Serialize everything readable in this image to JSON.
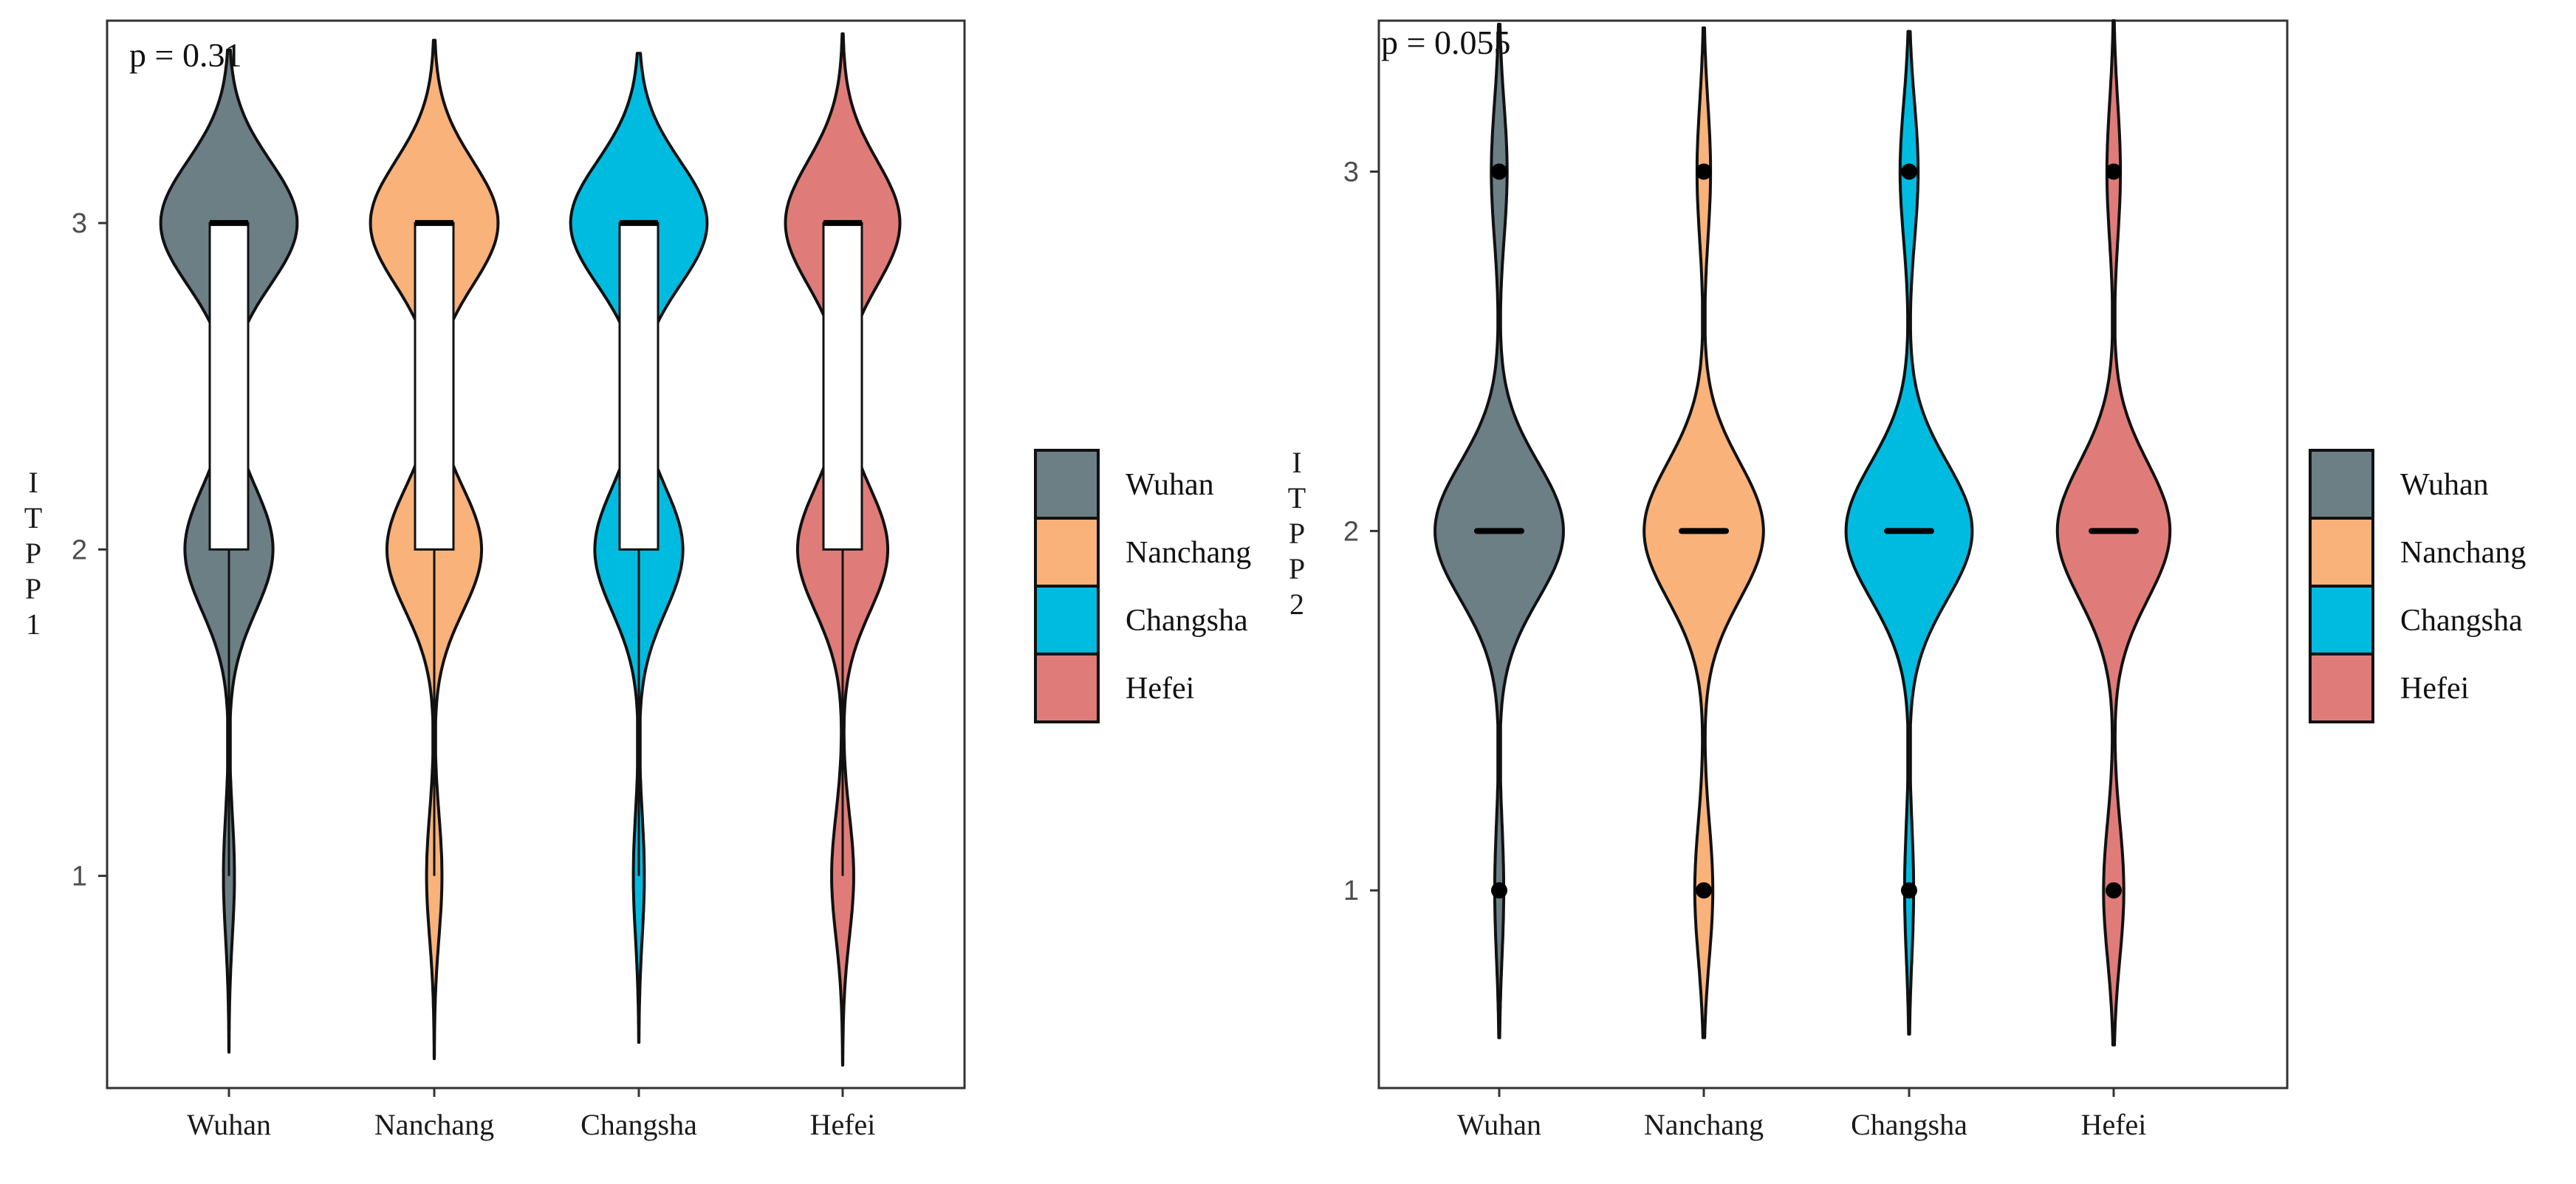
{
  "chart_data": [
    {
      "type": "violin",
      "id": "itpp1",
      "annotation": "p = 0.31",
      "ylabel": "ITPP1",
      "xlabel": "",
      "categories": [
        "Wuhan",
        "Nanchang",
        "Changsha",
        "Hefei"
      ],
      "y_ticks": [
        1,
        2,
        3
      ],
      "ylim": [
        0.35,
        3.62
      ],
      "overlay": "boxplot",
      "series": [
        {
          "name": "Wuhan",
          "color": "#6b7f85",
          "y_min": 0.46,
          "y_max": 3.53,
          "density_peaks": [
            {
              "y": 3,
              "w": 0.62
            },
            {
              "y": 2,
              "w": 0.4
            },
            {
              "y": 1,
              "w": 0.05
            }
          ],
          "box": {
            "q1": 2,
            "median": 3,
            "q3": 3,
            "whisker_low": 1,
            "whisker_high": 3
          }
        },
        {
          "name": "Nanchang",
          "color": "#f8b27a",
          "y_min": 0.44,
          "y_max": 3.56,
          "density_peaks": [
            {
              "y": 3,
              "w": 0.58
            },
            {
              "y": 2,
              "w": 0.43
            },
            {
              "y": 1,
              "w": 0.07
            }
          ],
          "box": {
            "q1": 2,
            "median": 3,
            "q3": 3,
            "whisker_low": 1,
            "whisker_high": 3
          }
        },
        {
          "name": "Changsha",
          "color": "#00bbe0",
          "y_min": 0.49,
          "y_max": 3.52,
          "density_peaks": [
            {
              "y": 3,
              "w": 0.62
            },
            {
              "y": 2,
              "w": 0.4
            },
            {
              "y": 1,
              "w": 0.05
            }
          ],
          "box": {
            "q1": 2,
            "median": 3,
            "q3": 3,
            "whisker_low": 1,
            "whisker_high": 3
          }
        },
        {
          "name": "Hefei",
          "color": "#df7c79",
          "y_min": 0.42,
          "y_max": 3.58,
          "density_peaks": [
            {
              "y": 3,
              "w": 0.52
            },
            {
              "y": 2,
              "w": 0.41
            },
            {
              "y": 1,
              "w": 0.1
            }
          ],
          "box": {
            "q1": 2,
            "median": 3,
            "q3": 3,
            "whisker_low": 1,
            "whisker_high": 3
          }
        }
      ],
      "legend": {
        "position": "right",
        "entries": [
          "Wuhan",
          "Nanchang",
          "Changsha",
          "Hefei"
        ]
      }
    },
    {
      "type": "violin",
      "id": "itpp2",
      "annotation": "p = 0.055",
      "ylabel": "ITPP2",
      "xlabel": "",
      "categories": [
        "Wuhan",
        "Nanchang",
        "Changsha",
        "Hefei"
      ],
      "y_ticks": [
        1,
        2,
        3
      ],
      "ylim": [
        0.45,
        3.42
      ],
      "overlay": "median-and-points",
      "series": [
        {
          "name": "Wuhan",
          "color": "#6b7f85",
          "y_min": 0.59,
          "y_max": 3.41,
          "density_peaks": [
            {
              "y": 3,
              "w": 0.07
            },
            {
              "y": 2,
              "w": 0.57
            },
            {
              "y": 1,
              "w": 0.04
            }
          ],
          "median": 2,
          "points": [
            1,
            3
          ]
        },
        {
          "name": "Nanchang",
          "color": "#f8b27a",
          "y_min": 0.59,
          "y_max": 3.4,
          "density_peaks": [
            {
              "y": 3,
              "w": 0.06
            },
            {
              "y": 2,
              "w": 0.53
            },
            {
              "y": 1,
              "w": 0.08
            }
          ],
          "median": 2,
          "points": [
            1,
            3
          ]
        },
        {
          "name": "Changsha",
          "color": "#00bbe0",
          "y_min": 0.6,
          "y_max": 3.39,
          "density_peaks": [
            {
              "y": 3,
              "w": 0.08
            },
            {
              "y": 2,
              "w": 0.56
            },
            {
              "y": 1,
              "w": 0.04
            }
          ],
          "median": 2,
          "points": [
            1,
            3
          ]
        },
        {
          "name": "Hefei",
          "color": "#df7c79",
          "y_min": 0.57,
          "y_max": 3.42,
          "density_peaks": [
            {
              "y": 3,
              "w": 0.06
            },
            {
              "y": 2,
              "w": 0.5
            },
            {
              "y": 1,
              "w": 0.09
            }
          ],
          "median": 2,
          "points": [
            1,
            3
          ]
        }
      ],
      "legend": {
        "position": "right",
        "entries": [
          "Wuhan",
          "Nanchang",
          "Changsha",
          "Hefei"
        ]
      }
    }
  ]
}
